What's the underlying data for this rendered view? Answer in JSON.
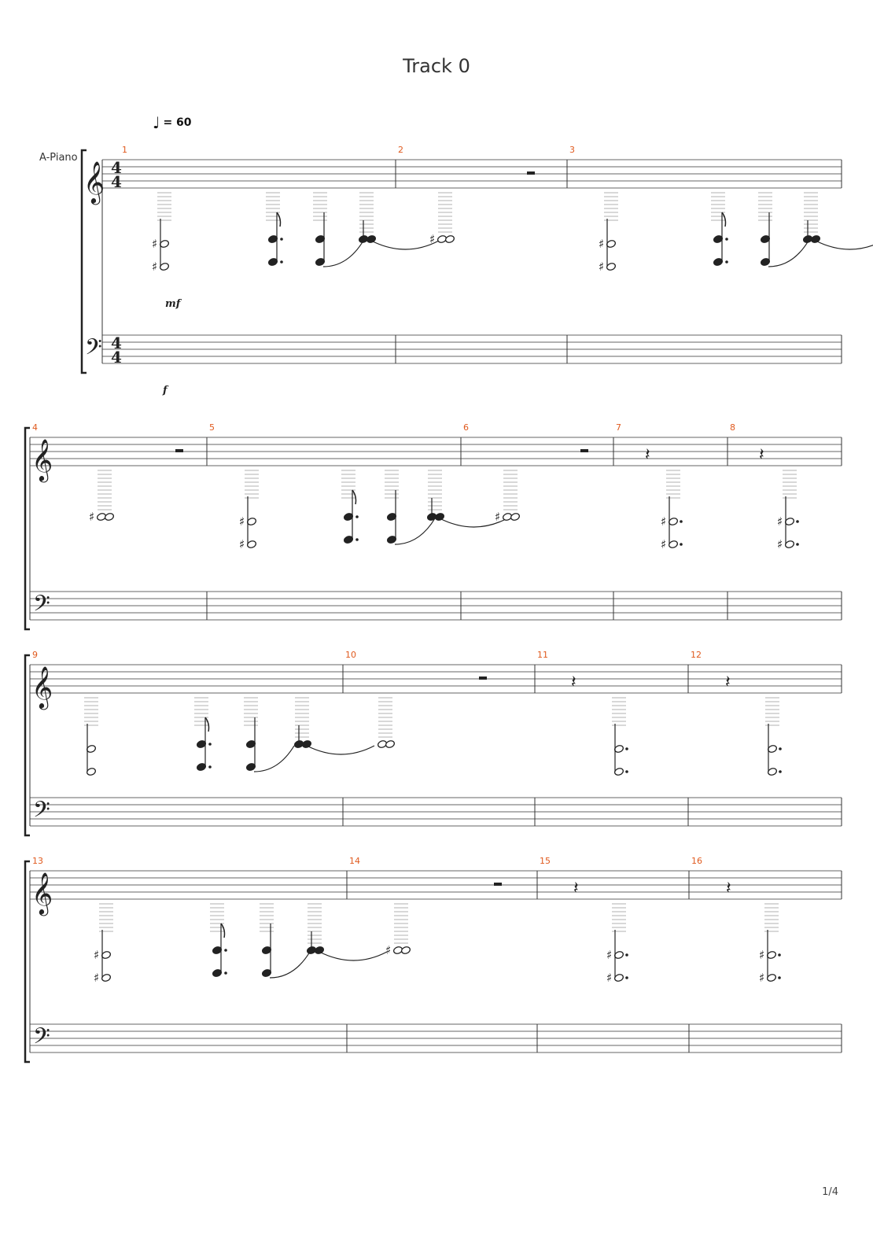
{
  "title": "Track 0",
  "instrument": "A-Piano",
  "tempo": {
    "symbol": "♩",
    "text": "= 60"
  },
  "time_signature": {
    "numerator": "4",
    "denominator": "4"
  },
  "dynamics": {
    "treble": "mf",
    "bass": "f"
  },
  "page_number": "1/4",
  "measures": [
    "1",
    "2",
    "3",
    "4",
    "5",
    "6",
    "7",
    "8",
    "9",
    "10",
    "11",
    "12",
    "13",
    "14",
    "15",
    "16"
  ],
  "colors": {
    "measure_number": "#e05a1e",
    "staff_line": "#333333",
    "note": "#222222"
  }
}
